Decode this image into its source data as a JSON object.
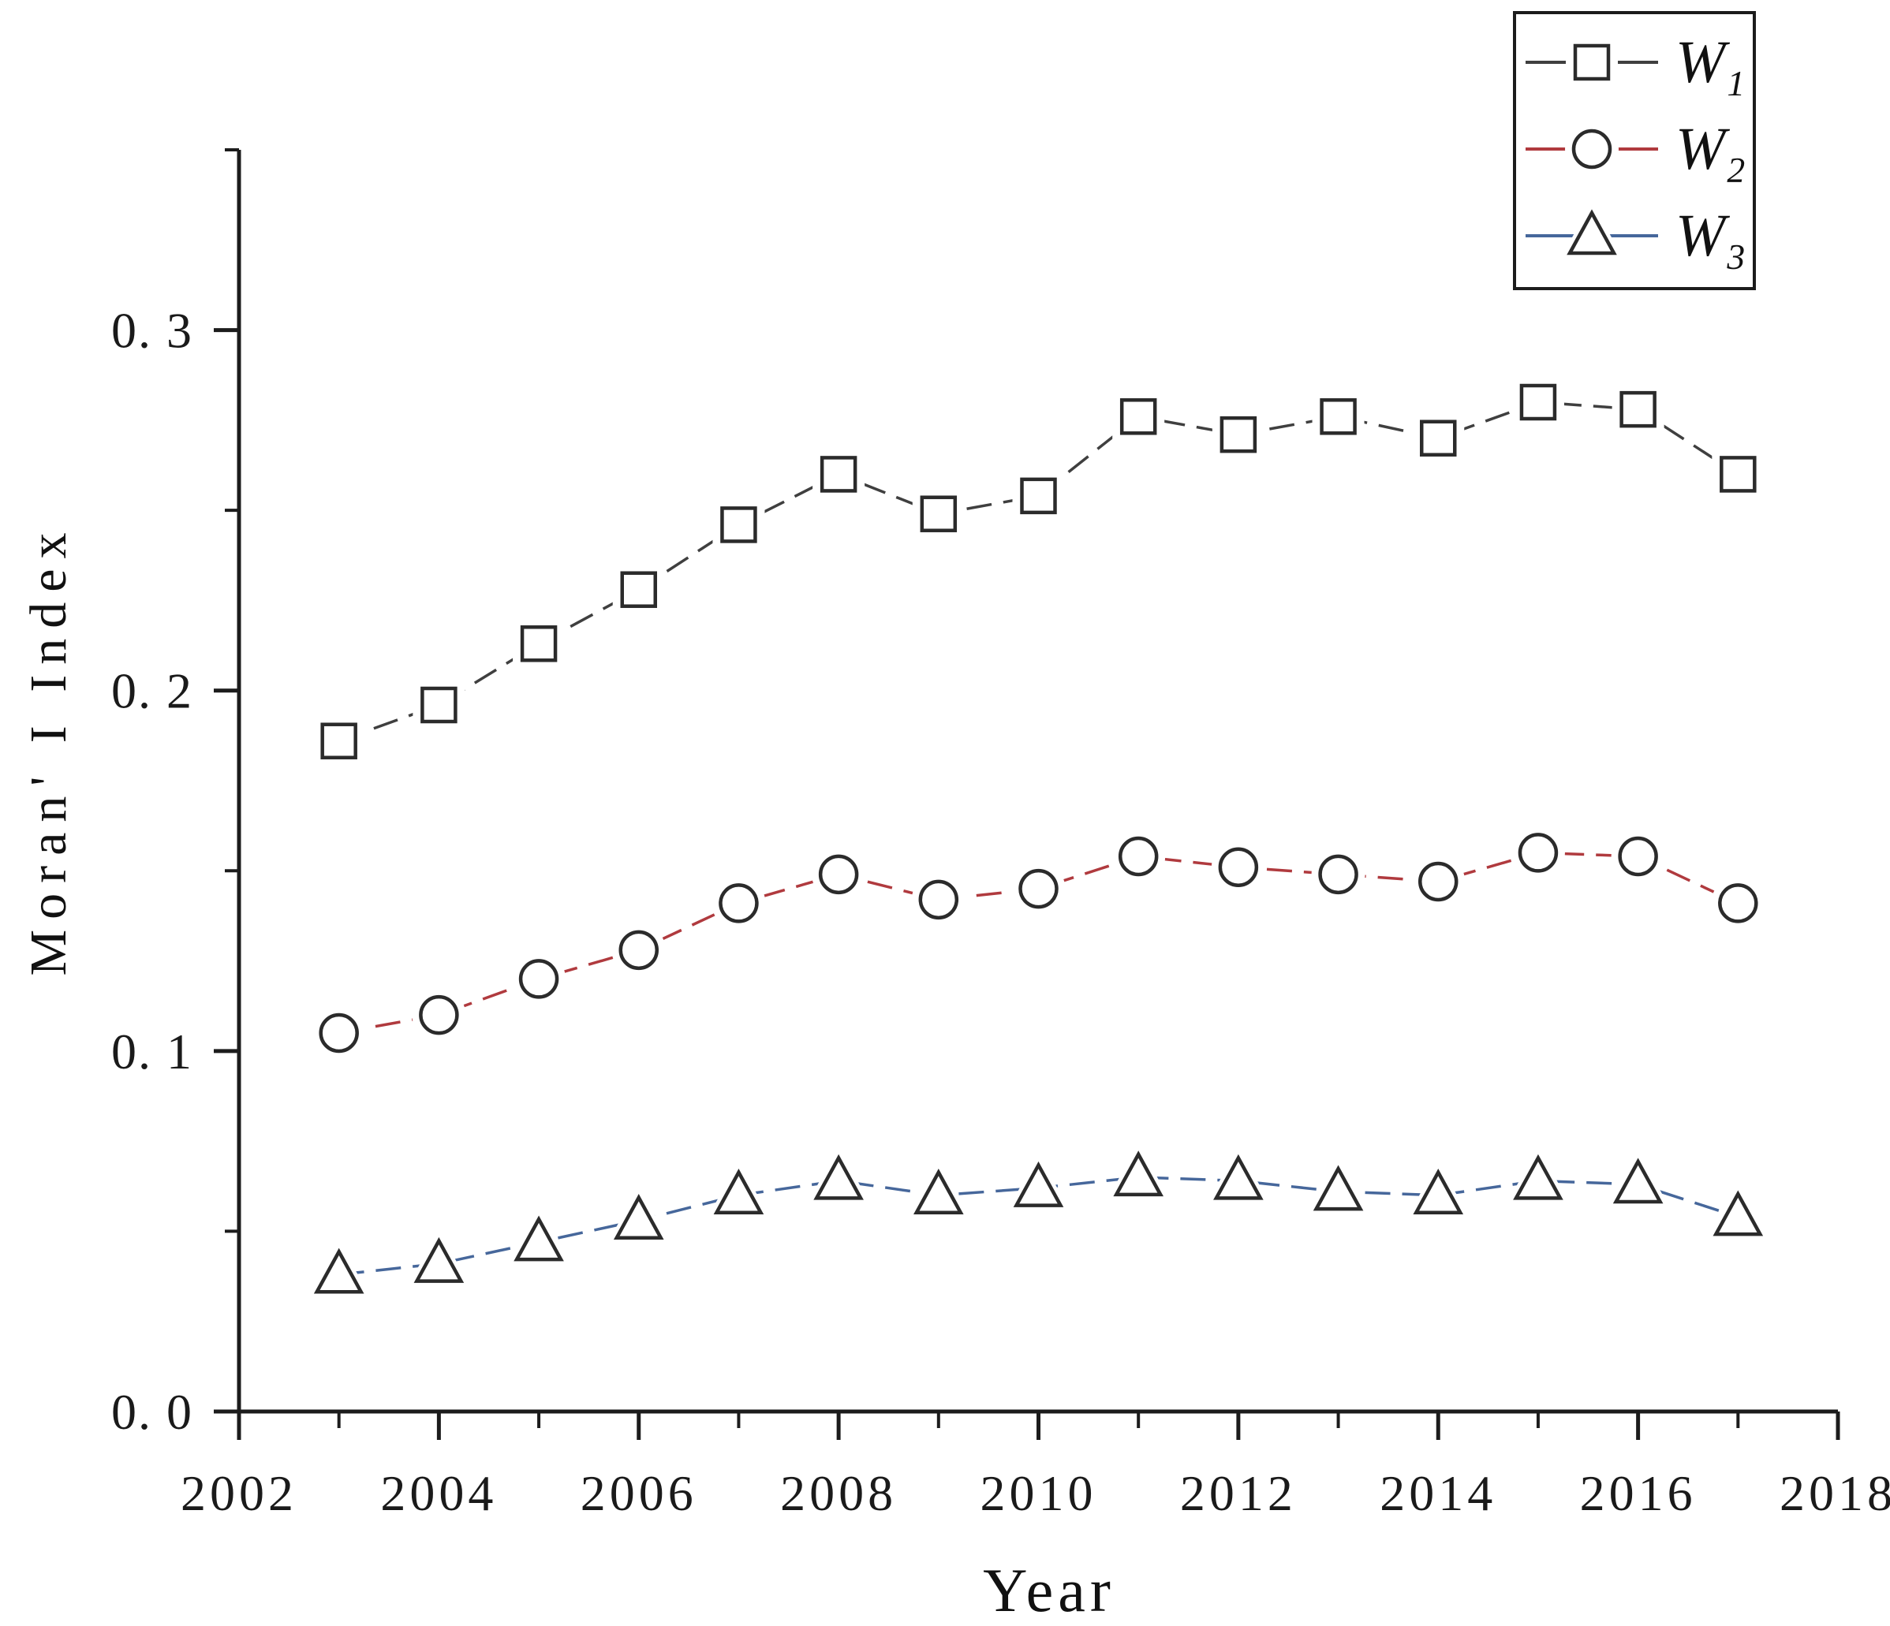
{
  "figure": {
    "background_color": "#ffffff",
    "text_color": "#111111",
    "axis_color": "#1c1c1c"
  },
  "chart_data": {
    "type": "line",
    "title": "",
    "xlabel": "Year",
    "ylabel": "Moran' I Index",
    "grid": false,
    "legend_position": "top-right-outside-plot",
    "x": [
      2003,
      2004,
      2005,
      2006,
      2007,
      2008,
      2009,
      2010,
      2011,
      2012,
      2013,
      2014,
      2015,
      2016,
      2017
    ],
    "series": [
      {
        "name": "W1",
        "label_base": "W",
        "label_sub": "1",
        "marker": "square",
        "color": "#3f3f3f",
        "marker_outline": "#2b2b2b",
        "marker_fill": "#ffffff",
        "values": [
          0.186,
          0.196,
          0.213,
          0.228,
          0.246,
          0.26,
          0.249,
          0.254,
          0.276,
          0.271,
          0.276,
          0.27,
          0.28,
          0.278,
          0.26
        ]
      },
      {
        "name": "W2",
        "label_base": "W",
        "label_sub": "2",
        "marker": "circle",
        "color": "#b03a3e",
        "marker_outline": "#2b2b2b",
        "marker_fill": "#ffffff",
        "values": [
          0.105,
          0.11,
          0.12,
          0.128,
          0.141,
          0.149,
          0.142,
          0.145,
          0.154,
          0.151,
          0.149,
          0.147,
          0.155,
          0.154,
          0.141
        ]
      },
      {
        "name": "W3",
        "label_base": "W",
        "label_sub": "3",
        "marker": "triangle",
        "color": "#46679b",
        "marker_outline": "#2b2b2b",
        "marker_fill": "#ffffff",
        "values": [
          0.038,
          0.041,
          0.047,
          0.053,
          0.06,
          0.064,
          0.06,
          0.062,
          0.065,
          0.064,
          0.061,
          0.06,
          0.064,
          0.063,
          0.054
        ]
      }
    ],
    "x_axis": {
      "min": 2002,
      "max": 2018,
      "major_ticks": [
        2002,
        2004,
        2006,
        2008,
        2010,
        2012,
        2014,
        2016,
        2018
      ],
      "minor_ticks": [
        2003,
        2005,
        2007,
        2009,
        2011,
        2013,
        2015,
        2017
      ],
      "tick_labels": [
        "2002",
        "2004",
        "2006",
        "2008",
        "2010",
        "2012",
        "2014",
        "2016",
        "2018"
      ]
    },
    "y_axis": {
      "min": 0,
      "max": 0.35,
      "major_ticks": [
        0,
        0.1,
        0.2,
        0.3
      ],
      "minor_ticks": [
        0.05,
        0.15,
        0.25,
        0.35
      ],
      "tick_labels": [
        "0. 0",
        "0. 1",
        "0. 2",
        "0. 3"
      ]
    }
  }
}
